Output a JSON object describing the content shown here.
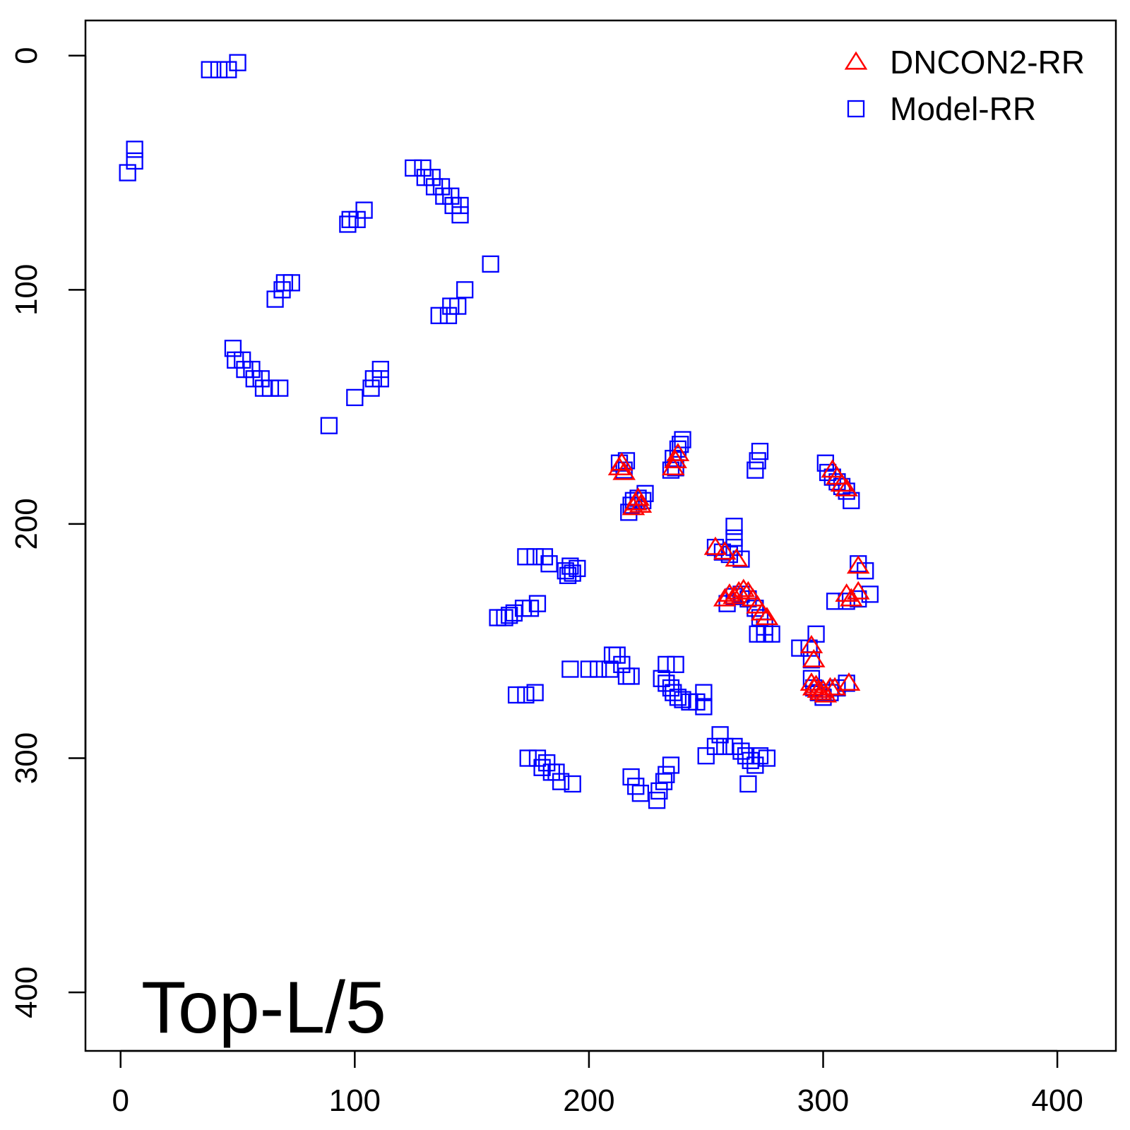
{
  "chart_data": {
    "type": "scatter",
    "title": "",
    "xlabel": "",
    "ylabel": "",
    "xlim": [
      -15,
      425
    ],
    "ylim": [
      -15,
      425
    ],
    "y_inverted": true,
    "grid": false,
    "legend_position": "top-right",
    "annotation": "Top-L/5",
    "x_ticks": [
      "0",
      "100",
      "200",
      "300",
      "400"
    ],
    "y_ticks": [
      "0",
      "100",
      "200",
      "300",
      "400"
    ],
    "series": [
      {
        "name": "DNCON2-RR",
        "marker": "triangle",
        "color": "#ff0000",
        "points": [
          [
            213,
            176
          ],
          [
            214,
            174
          ],
          [
            215,
            178
          ],
          [
            219,
            193
          ],
          [
            220,
            191
          ],
          [
            221,
            189
          ],
          [
            222,
            192
          ],
          [
            236,
            176
          ],
          [
            237,
            173
          ],
          [
            238,
            170
          ],
          [
            254,
            210
          ],
          [
            258,
            212
          ],
          [
            263,
            215
          ],
          [
            258,
            232
          ],
          [
            260,
            230
          ],
          [
            262,
            231
          ],
          [
            264,
            229
          ],
          [
            266,
            228
          ],
          [
            268,
            229
          ],
          [
            270,
            232
          ],
          [
            272,
            235
          ],
          [
            274,
            238
          ],
          [
            276,
            240
          ],
          [
            295,
            252
          ],
          [
            296,
            258
          ],
          [
            295,
            268
          ],
          [
            296,
            270
          ],
          [
            297,
            269
          ],
          [
            298,
            271
          ],
          [
            299,
            272
          ],
          [
            300,
            271
          ],
          [
            301,
            273
          ],
          [
            303,
            270
          ],
          [
            305,
            270
          ],
          [
            311,
            268
          ],
          [
            304,
            177
          ],
          [
            306,
            180
          ],
          [
            308,
            183
          ],
          [
            310,
            185
          ],
          [
            310,
            230
          ],
          [
            312,
            232
          ],
          [
            315,
            229
          ],
          [
            315,
            218
          ]
        ]
      },
      {
        "name": "Model-RR",
        "marker": "square",
        "color": "#0000ff",
        "points": [
          [
            38,
            6
          ],
          [
            42,
            6
          ],
          [
            46,
            6
          ],
          [
            50,
            3
          ],
          [
            3,
            50
          ],
          [
            6,
            45
          ],
          [
            6,
            40
          ],
          [
            125,
            48
          ],
          [
            129,
            48
          ],
          [
            130,
            52
          ],
          [
            133,
            52
          ],
          [
            134,
            56
          ],
          [
            137,
            56
          ],
          [
            138,
            60
          ],
          [
            141,
            60
          ],
          [
            142,
            64
          ],
          [
            145,
            64
          ],
          [
            145,
            68
          ],
          [
            97,
            72
          ],
          [
            98,
            70
          ],
          [
            101,
            70
          ],
          [
            104,
            66
          ],
          [
            158,
            89
          ],
          [
            66,
            104
          ],
          [
            69,
            100
          ],
          [
            70,
            97
          ],
          [
            73,
            97
          ],
          [
            136,
            111
          ],
          [
            140,
            111
          ],
          [
            141,
            107
          ],
          [
            144,
            107
          ],
          [
            147,
            100
          ],
          [
            48,
            125
          ],
          [
            49,
            130
          ],
          [
            52,
            130
          ],
          [
            53,
            134
          ],
          [
            56,
            134
          ],
          [
            57,
            138
          ],
          [
            60,
            138
          ],
          [
            61,
            142
          ],
          [
            64,
            142
          ],
          [
            68,
            142
          ],
          [
            89,
            158
          ],
          [
            100,
            146
          ],
          [
            107,
            142
          ],
          [
            108,
            138
          ],
          [
            111,
            138
          ],
          [
            111,
            134
          ],
          [
            213,
            174
          ],
          [
            215,
            177
          ],
          [
            216,
            173
          ],
          [
            217,
            195
          ],
          [
            218,
            192
          ],
          [
            219,
            190
          ],
          [
            221,
            189
          ],
          [
            223,
            190
          ],
          [
            224,
            187
          ],
          [
            235,
            177
          ],
          [
            237,
            176
          ],
          [
            236,
            172
          ],
          [
            238,
            168
          ],
          [
            239,
            166
          ],
          [
            240,
            164
          ],
          [
            271,
            177
          ],
          [
            272,
            173
          ],
          [
            273,
            169
          ],
          [
            301,
            174
          ],
          [
            302,
            178
          ],
          [
            304,
            180
          ],
          [
            306,
            182
          ],
          [
            308,
            184
          ],
          [
            310,
            186
          ],
          [
            312,
            190
          ],
          [
            254,
            210
          ],
          [
            257,
            212
          ],
          [
            260,
            213
          ],
          [
            262,
            210
          ],
          [
            262,
            206
          ],
          [
            262,
            201
          ],
          [
            265,
            215
          ],
          [
            173,
            214
          ],
          [
            177,
            214
          ],
          [
            181,
            214
          ],
          [
            183,
            217
          ],
          [
            190,
            220
          ],
          [
            191,
            222
          ],
          [
            192,
            218
          ],
          [
            193,
            221
          ],
          [
            195,
            219
          ],
          [
            161,
            240
          ],
          [
            164,
            240
          ],
          [
            166,
            239
          ],
          [
            168,
            238
          ],
          [
            172,
            236
          ],
          [
            175,
            236
          ],
          [
            178,
            234
          ],
          [
            259,
            234
          ],
          [
            262,
            231
          ],
          [
            265,
            230
          ],
          [
            268,
            232
          ],
          [
            271,
            236
          ],
          [
            273,
            240
          ],
          [
            275,
            244
          ],
          [
            272,
            247
          ],
          [
            275,
            247
          ],
          [
            278,
            247
          ],
          [
            315,
            217
          ],
          [
            318,
            220
          ],
          [
            320,
            230
          ],
          [
            315,
            232
          ],
          [
            310,
            233
          ],
          [
            305,
            233
          ],
          [
            290,
            253
          ],
          [
            294,
            253
          ],
          [
            297,
            247
          ],
          [
            295,
            258
          ],
          [
            192,
            262
          ],
          [
            200,
            262
          ],
          [
            204,
            262
          ],
          [
            209,
            262
          ],
          [
            210,
            256
          ],
          [
            212,
            256
          ],
          [
            214,
            260
          ],
          [
            216,
            265
          ],
          [
            218,
            265
          ],
          [
            231,
            266
          ],
          [
            233,
            268
          ],
          [
            235,
            270
          ],
          [
            236,
            272
          ],
          [
            238,
            274
          ],
          [
            240,
            275
          ],
          [
            243,
            276
          ],
          [
            246,
            276
          ],
          [
            249,
            278
          ],
          [
            249,
            272
          ],
          [
            233,
            260
          ],
          [
            237,
            260
          ],
          [
            169,
            273
          ],
          [
            173,
            273
          ],
          [
            177,
            272
          ],
          [
            295,
            266
          ],
          [
            296,
            270
          ],
          [
            298,
            272
          ],
          [
            300,
            274
          ],
          [
            303,
            272
          ],
          [
            306,
            270
          ],
          [
            310,
            268
          ],
          [
            174,
            300
          ],
          [
            178,
            300
          ],
          [
            180,
            304
          ],
          [
            182,
            302
          ],
          [
            184,
            306
          ],
          [
            186,
            306
          ],
          [
            188,
            310
          ],
          [
            193,
            311
          ],
          [
            250,
            299
          ],
          [
            254,
            295
          ],
          [
            256,
            290
          ],
          [
            258,
            295
          ],
          [
            262,
            295
          ],
          [
            265,
            297
          ],
          [
            267,
            299
          ],
          [
            269,
            301
          ],
          [
            271,
            303
          ],
          [
            273,
            299
          ],
          [
            276,
            300
          ],
          [
            268,
            311
          ],
          [
            218,
            308
          ],
          [
            220,
            312
          ],
          [
            222,
            315
          ],
          [
            229,
            318
          ],
          [
            230,
            314
          ],
          [
            232,
            310
          ],
          [
            233,
            307
          ],
          [
            235,
            303
          ]
        ]
      }
    ]
  }
}
